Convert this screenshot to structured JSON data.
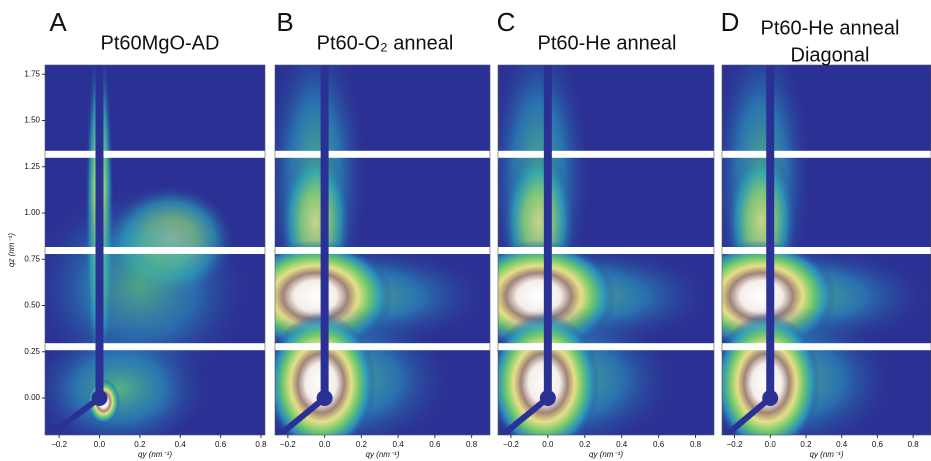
{
  "chart_data": [
    {
      "type": "heatmap",
      "panel": "A",
      "title": [
        "Pt60MgO-AD"
      ],
      "xlabel": "qy (nm⁻¹)",
      "ylabel": "qz (nm⁻¹)",
      "xlim": [
        -0.27,
        0.82
      ],
      "ylim": [
        -0.2,
        1.8
      ],
      "xticks": [
        {
          "value": -0.2,
          "label": "−0.2"
        },
        {
          "value": 0,
          "label": "0.0"
        },
        0.2,
        0.4,
        0.6,
        0.8
      ],
      "yticks": [
        {
          "value": 0,
          "label": "0.00"
        },
        {
          "value": 0.25,
          "label": "0.25"
        },
        {
          "value": 0.5,
          "label": "0.50"
        },
        {
          "value": 0.75,
          "label": "0.75"
        },
        {
          "value": 1,
          "label": "1.00"
        },
        {
          "value": 1.25,
          "label": "1.25"
        },
        {
          "value": 1.5,
          "label": "1.50"
        },
        {
          "value": 1.75,
          "label": "1.75"
        }
      ]
    },
    {
      "type": "heatmap",
      "panel": "B",
      "title": [
        "Pt60-O₂ anneal"
      ],
      "xlabel": "qy (nm⁻¹)",
      "xlim": [
        -0.27,
        0.9
      ],
      "ylim": [
        -0.2,
        1.8
      ],
      "xticks": [
        {
          "value": -0.2,
          "label": "−0.2"
        },
        {
          "value": 0,
          "label": "0.0"
        },
        0.2,
        0.4,
        0.6,
        0.8
      ]
    },
    {
      "type": "heatmap",
      "panel": "C",
      "title": [
        "Pt60-He anneal"
      ],
      "xlabel": "qy (nm⁻¹)",
      "xlim": [
        -0.27,
        0.9
      ],
      "ylim": [
        -0.2,
        1.8
      ],
      "xticks": [
        {
          "value": -0.2,
          "label": "−0.2"
        },
        {
          "value": 0,
          "label": "0.0"
        },
        0.2,
        0.4,
        0.6,
        0.8
      ]
    },
    {
      "type": "heatmap",
      "panel": "D",
      "title": [
        "Pt60-He anneal",
        "Diagonal"
      ],
      "xlabel": "qy (nm⁻¹)",
      "xlim": [
        -0.27,
        0.9
      ],
      "ylim": [
        -0.2,
        1.8
      ],
      "xticks": [
        {
          "value": -0.2,
          "label": "−0.2"
        },
        {
          "value": 0,
          "label": "0.0"
        },
        0.2,
        0.4,
        0.6,
        0.8
      ]
    }
  ]
}
